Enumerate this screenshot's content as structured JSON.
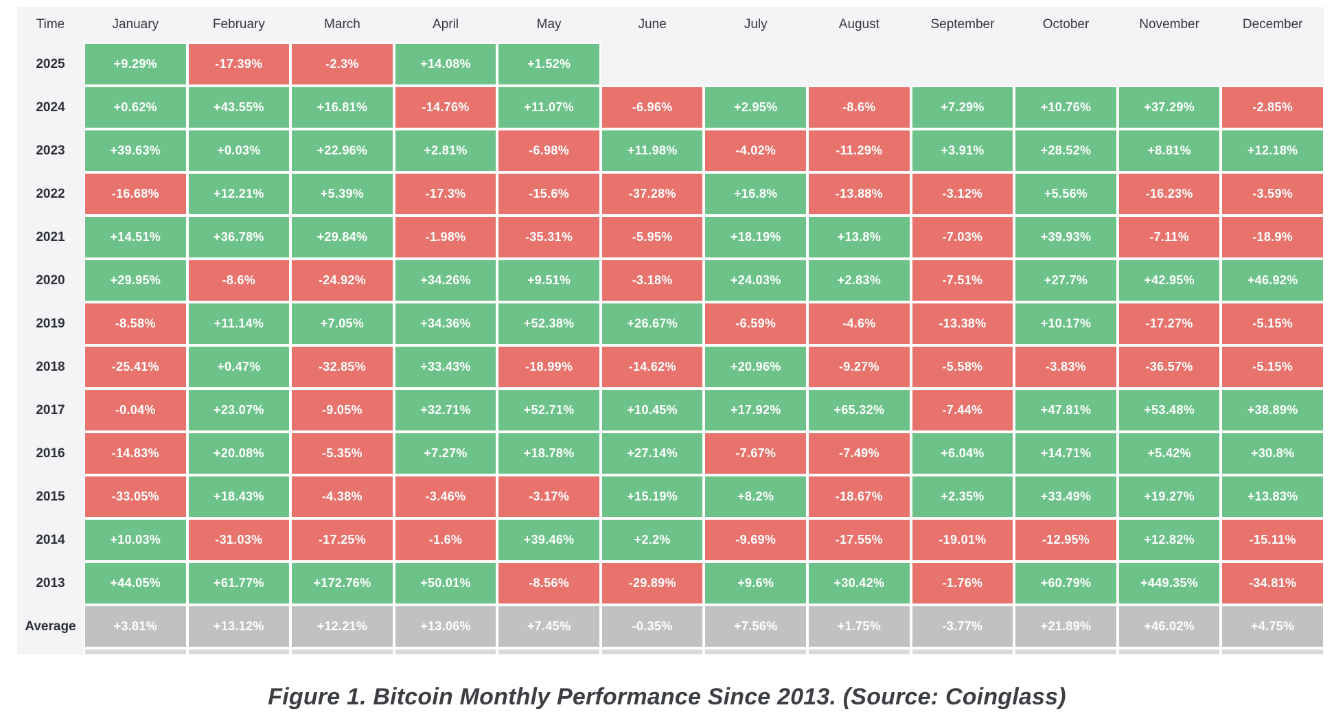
{
  "caption": "Figure 1. Bitcoin Monthly Performance Since 2013. (Source: Coinglass)",
  "colors": {
    "positive": "#6dc28a",
    "negative": "#e8726c",
    "average": "#c1c1c1",
    "stub": "#d9d9d9",
    "panel": "#f4f4f6"
  },
  "chart_data": {
    "type": "heatmap",
    "title": "Figure 1. Bitcoin Monthly Performance Since 2013. (Source: Coinglass)",
    "value_unit": "%",
    "row_header": "Time",
    "columns": [
      "January",
      "February",
      "March",
      "April",
      "May",
      "June",
      "July",
      "August",
      "September",
      "October",
      "November",
      "December"
    ],
    "rows": [
      {
        "label": "2025",
        "values": [
          9.29,
          -17.39,
          -2.3,
          14.08,
          1.52,
          null,
          null,
          null,
          null,
          null,
          null,
          null
        ]
      },
      {
        "label": "2024",
        "values": [
          0.62,
          43.55,
          16.81,
          -14.76,
          11.07,
          -6.96,
          2.95,
          -8.6,
          7.29,
          10.76,
          37.29,
          -2.85
        ]
      },
      {
        "label": "2023",
        "values": [
          39.63,
          0.03,
          22.96,
          2.81,
          -6.98,
          11.98,
          -4.02,
          -11.29,
          3.91,
          28.52,
          8.81,
          12.18
        ]
      },
      {
        "label": "2022",
        "values": [
          -16.68,
          12.21,
          5.39,
          -17.3,
          -15.6,
          -37.28,
          16.8,
          -13.88,
          -3.12,
          5.56,
          -16.23,
          -3.59
        ]
      },
      {
        "label": "2021",
        "values": [
          14.51,
          36.78,
          29.84,
          -1.98,
          -35.31,
          -5.95,
          18.19,
          13.8,
          -7.03,
          39.93,
          -7.11,
          -18.9
        ]
      },
      {
        "label": "2020",
        "values": [
          29.95,
          -8.6,
          -24.92,
          34.26,
          9.51,
          -3.18,
          24.03,
          2.83,
          -7.51,
          27.7,
          42.95,
          46.92
        ]
      },
      {
        "label": "2019",
        "values": [
          -8.58,
          11.14,
          7.05,
          34.36,
          52.38,
          26.67,
          -6.59,
          -4.6,
          -13.38,
          10.17,
          -17.27,
          -5.15
        ]
      },
      {
        "label": "2018",
        "values": [
          -25.41,
          0.47,
          -32.85,
          33.43,
          -18.99,
          -14.62,
          20.96,
          -9.27,
          -5.58,
          -3.83,
          -36.57,
          -5.15
        ]
      },
      {
        "label": "2017",
        "values": [
          -0.04,
          23.07,
          -9.05,
          32.71,
          52.71,
          10.45,
          17.92,
          65.32,
          -7.44,
          47.81,
          53.48,
          38.89
        ]
      },
      {
        "label": "2016",
        "values": [
          -14.83,
          20.08,
          -5.35,
          7.27,
          18.78,
          27.14,
          -7.67,
          -7.49,
          6.04,
          14.71,
          5.42,
          30.8
        ]
      },
      {
        "label": "2015",
        "values": [
          -33.05,
          18.43,
          -4.38,
          -3.46,
          -3.17,
          15.19,
          8.2,
          -18.67,
          2.35,
          33.49,
          19.27,
          13.83
        ]
      },
      {
        "label": "2014",
        "values": [
          10.03,
          -31.03,
          -17.25,
          -1.6,
          39.46,
          2.2,
          -9.69,
          -17.55,
          -19.01,
          -12.95,
          12.82,
          -15.11
        ]
      },
      {
        "label": "2013",
        "values": [
          44.05,
          61.77,
          172.76,
          50.01,
          -8.56,
          -29.89,
          9.6,
          30.42,
          -1.76,
          60.79,
          449.35,
          -34.81
        ]
      },
      {
        "label": "Average",
        "values": [
          3.81,
          13.12,
          12.21,
          13.06,
          7.45,
          -0.35,
          7.56,
          1.75,
          -3.77,
          21.89,
          46.02,
          4.75
        ]
      }
    ]
  }
}
